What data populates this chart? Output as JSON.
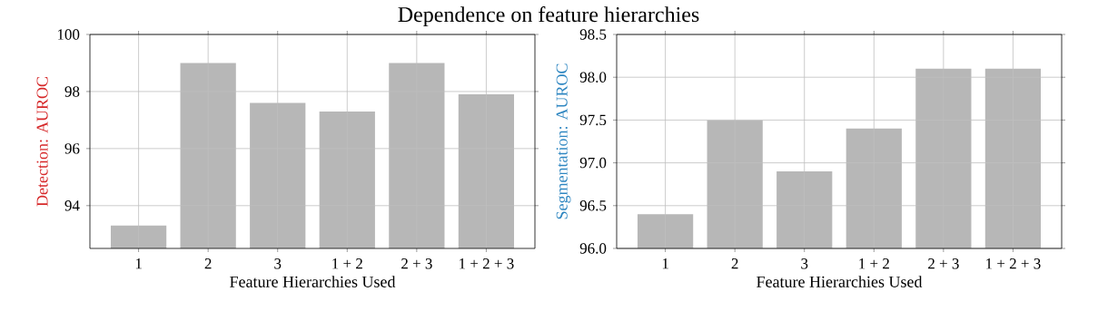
{
  "chart_data": [
    {
      "type": "bar",
      "title": "Dependence on feature hierarchies",
      "xlabel": "Feature Hierarchies Used",
      "ylabel": "Detection: AUROC",
      "categories": [
        "1",
        "2",
        "3",
        "1 + 2",
        "2 + 3",
        "1 + 2 + 3"
      ],
      "values": [
        93.3,
        99.0,
        97.6,
        97.3,
        99.0,
        97.9
      ],
      "color": "#b7b7b7",
      "ylim": [
        92.5,
        100
      ],
      "yticks": [
        94,
        96,
        98,
        100
      ],
      "grid": true
    },
    {
      "type": "bar",
      "xlabel": "Feature Hierarchies Used",
      "ylabel": "Segmentation: AUROC",
      "categories": [
        "1",
        "2",
        "3",
        "1 + 2",
        "2 + 3",
        "1 + 2 + 3"
      ],
      "values": [
        96.4,
        97.5,
        96.9,
        97.4,
        98.1,
        98.1
      ],
      "color": "#b7b7b7",
      "ylim": [
        96,
        98.5
      ],
      "yticks": [
        {
          "value": 96,
          "label": "96.0"
        },
        {
          "value": 96.5,
          "label": "96.5"
        },
        {
          "value": 97,
          "label": "97.0"
        },
        {
          "value": 97.5,
          "label": "97.5"
        },
        {
          "value": 98,
          "label": "98.0"
        },
        {
          "value": 98.5,
          "label": "98.5"
        }
      ],
      "grid": true
    }
  ]
}
